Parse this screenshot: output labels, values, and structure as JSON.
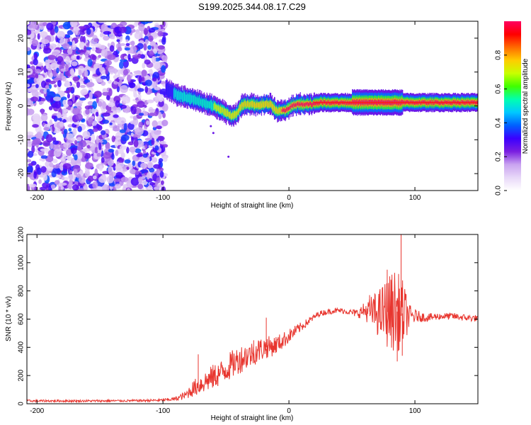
{
  "title": "S199.2025.344.08.17.C29",
  "chart_data": [
    {
      "type": "heatmap",
      "xlabel": "Height of straight line (km)",
      "ylabel": "Frequency (Hz)",
      "xlim": [
        -208,
        150
      ],
      "ylim": [
        -25,
        25
      ],
      "xticks": [
        -200,
        -100,
        0,
        100
      ],
      "yticks": [
        20,
        10,
        0,
        -10,
        -20
      ],
      "noise_region_x": [
        -208,
        -98
      ],
      "scattered_dots": [
        {
          "x": -62,
          "y": -6
        },
        {
          "x": -60,
          "y": -8
        },
        {
          "x": -48,
          "y": -15
        }
      ],
      "ridge": {
        "description": "frequency of the dominant (normalized amplitude ~1) component vs height",
        "x": [
          -98,
          -92,
          -88,
          -82,
          -78,
          -72,
          -66,
          -60,
          -55,
          -50,
          -46,
          -42,
          -38,
          -34,
          -30,
          -25,
          -20,
          -15,
          -10,
          -6,
          -2,
          2,
          6,
          12,
          18,
          24,
          30,
          40,
          50,
          60,
          70,
          80,
          90,
          100,
          110,
          120,
          130,
          140,
          150
        ],
        "y": [
          5,
          4,
          3,
          2.5,
          2,
          1.5,
          0.5,
          0,
          -1,
          -2,
          -3,
          -2.5,
          0,
          0.5,
          0.5,
          0,
          0.5,
          0.5,
          -1.5,
          -1.5,
          -1,
          0,
          0.5,
          0.5,
          0.5,
          1,
          1,
          1,
          1,
          1,
          1,
          1,
          1,
          1,
          1,
          1,
          1,
          1,
          1
        ],
        "amp": [
          0.35,
          0.45,
          0.5,
          0.55,
          0.55,
          0.6,
          0.6,
          0.65,
          0.7,
          0.75,
          0.75,
          0.75,
          0.85,
          0.85,
          0.85,
          0.9,
          0.85,
          0.9,
          0.85,
          0.9,
          0.9,
          0.9,
          0.95,
          0.95,
          1,
          1,
          1,
          1,
          1,
          1,
          1,
          1,
          1,
          1,
          1,
          1,
          1,
          1,
          1
        ]
      }
    },
    {
      "type": "colorbar",
      "label": "Normalized spectral amplitude",
      "range": [
        0,
        1
      ],
      "ticks": [
        "0.0",
        "0.2",
        "0.4",
        "0.6",
        "0.8"
      ],
      "colors": [
        "#ffffff",
        "#e8d8f8",
        "#c9a3f0",
        "#7a1ee0",
        "#3b00ff",
        "#0060ff",
        "#00c8ff",
        "#00ffb0",
        "#40ff00",
        "#c8ff00",
        "#ffcc00",
        "#ff6a00",
        "#ff0000",
        "#ff0060"
      ]
    },
    {
      "type": "line",
      "xlabel": "Height of straight line (km)",
      "ylabel": "SNR (10 * v/v)",
      "xlim": [
        -208,
        150
      ],
      "ylim": [
        0,
        1200
      ],
      "xticks": [
        -200,
        -100,
        0,
        100
      ],
      "yticks": [
        0,
        200,
        400,
        600,
        800,
        1000,
        1200
      ],
      "color": "#e8362f",
      "series": [
        {
          "name": "SNR",
          "x": [
            -208,
            -180,
            -150,
            -120,
            -100,
            -90,
            -82,
            -78,
            -72,
            -66,
            -60,
            -54,
            -48,
            -42,
            -36,
            -30,
            -24,
            -18,
            -12,
            -6,
            0,
            6,
            12,
            18,
            24,
            30,
            36,
            42,
            48,
            54,
            60,
            66,
            72,
            78,
            84,
            90,
            96,
            102,
            110,
            120,
            130,
            140,
            150
          ],
          "values": [
            20,
            20,
            20,
            22,
            25,
            35,
            60,
            95,
            130,
            160,
            190,
            220,
            260,
            300,
            330,
            350,
            380,
            400,
            410,
            440,
            480,
            520,
            560,
            600,
            640,
            650,
            660,
            660,
            650,
            640,
            660,
            650,
            640,
            650,
            660,
            640,
            620,
            620,
            610,
            620,
            620,
            610,
            605
          ],
          "noise_amplitude": [
            8,
            8,
            8,
            8,
            10,
            15,
            30,
            50,
            70,
            80,
            90,
            90,
            100,
            100,
            100,
            90,
            90,
            80,
            70,
            60,
            50,
            40,
            30,
            25,
            20,
            20,
            20,
            20,
            20,
            30,
            60,
            120,
            180,
            250,
            300,
            250,
            80,
            40,
            30,
            25,
            25,
            25,
            25
          ],
          "spikes": [
            {
              "x": -72,
              "y": 350
            },
            {
              "x": -28,
              "y": 450
            },
            {
              "x": -18,
              "y": 610
            },
            {
              "x": 64,
              "y": 770
            },
            {
              "x": 78,
              "y": 950
            },
            {
              "x": 81,
              "y": 880
            },
            {
              "x": 89,
              "y": 1200
            },
            {
              "x": 90,
              "y": 340
            },
            {
              "x": 86,
              "y": 300
            }
          ]
        }
      ]
    }
  ]
}
